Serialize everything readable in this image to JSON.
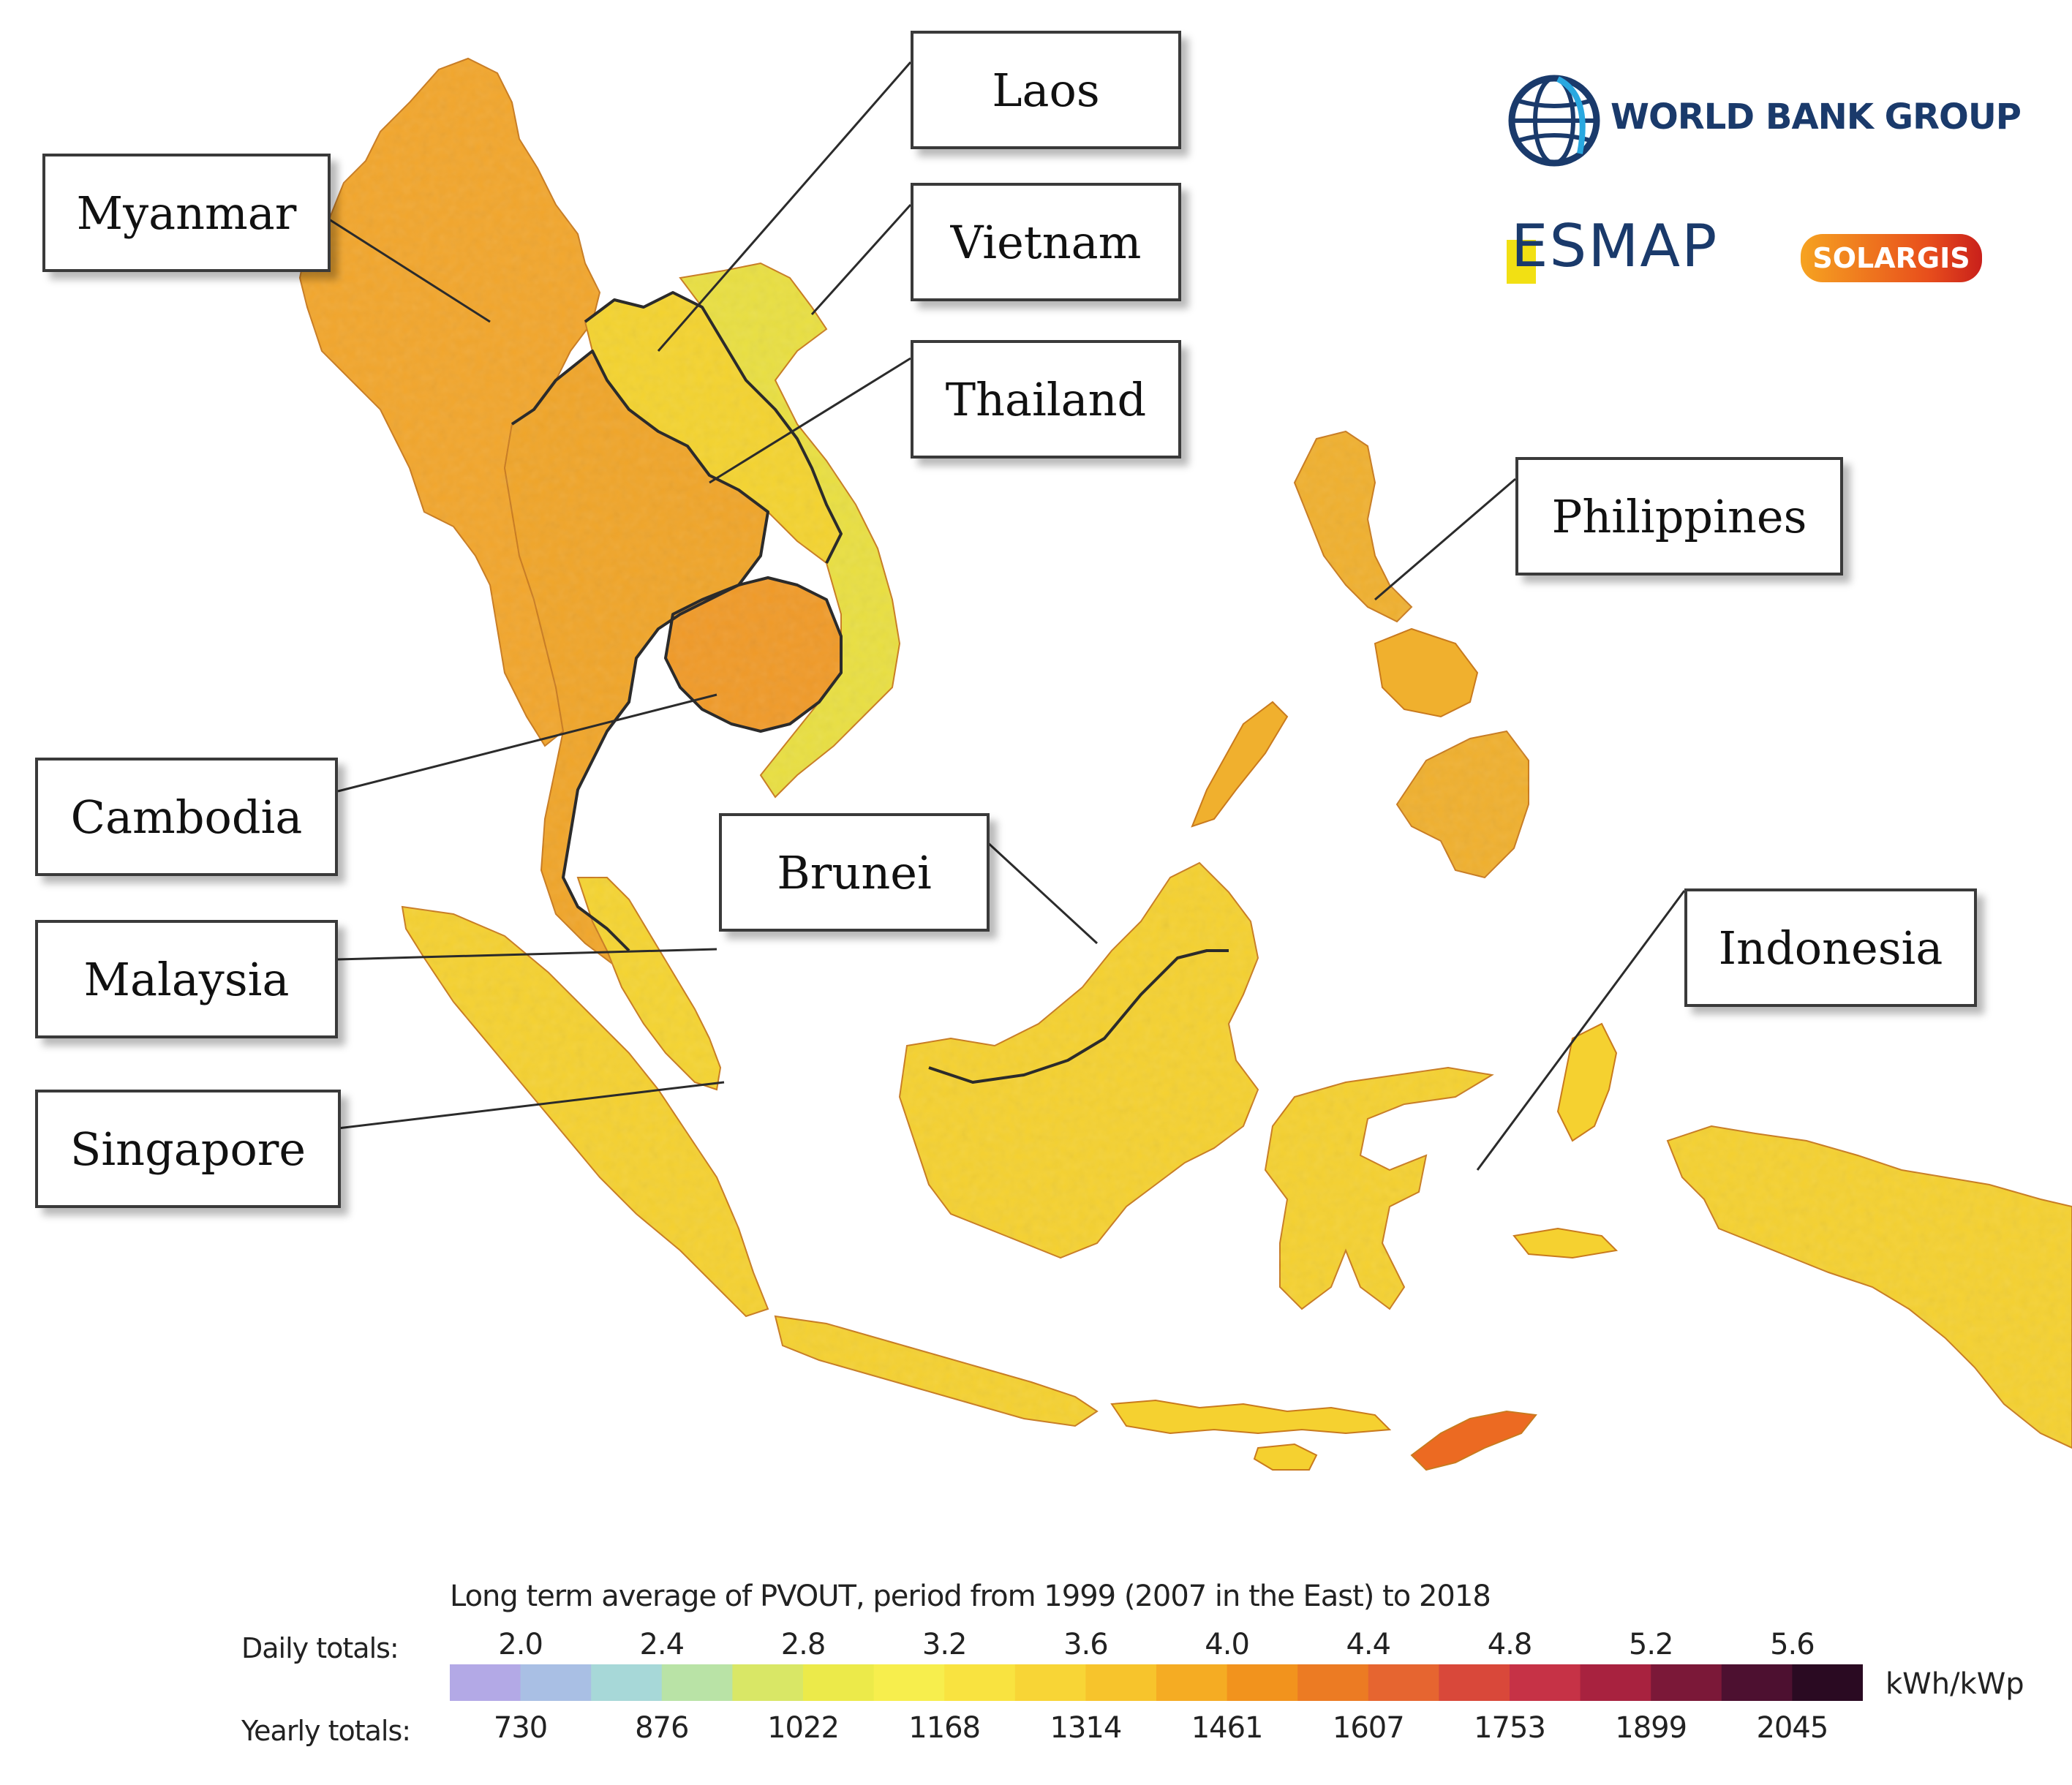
{
  "map": {
    "type": "choropleth",
    "region": "Southeast Asia",
    "countries": [
      {
        "name": "Myanmar",
        "fill": "#f2a62c"
      },
      {
        "name": "Laos",
        "fill": "#f4d32f"
      },
      {
        "name": "Vietnam",
        "fill": "#e9df41"
      },
      {
        "name": "Thailand",
        "fill": "#f0a529"
      },
      {
        "name": "Cambodia",
        "fill": "#f09a28"
      },
      {
        "name": "Malaysia",
        "fill": "#f5d431"
      },
      {
        "name": "Singapore",
        "fill": "#f5d431"
      },
      {
        "name": "Brunei",
        "fill": "#f5cf30"
      },
      {
        "name": "Philippines",
        "fill": "#f0b02e"
      },
      {
        "name": "Indonesia",
        "fill": "#f5d130"
      }
    ]
  },
  "labels": {
    "myanmar": "Myanmar",
    "laos": "Laos",
    "vietnam": "Vietnam",
    "thailand": "Thailand",
    "philippines": "Philippines",
    "cambodia": "Cambodia",
    "brunei": "Brunei",
    "malaysia": "Malaysia",
    "singapore": "Singapore",
    "indonesia": "Indonesia"
  },
  "logos": {
    "world_bank": "WORLD BANK GROUP",
    "esmap": "ESMAP",
    "solargis": "SOLARGIS"
  },
  "legend": {
    "title": "Long term average of PVOUT, period from 1999 (2007 in the East) to 2018",
    "daily_label": "Daily totals:",
    "yearly_label": "Yearly totals:",
    "unit": "kWh/kWp",
    "daily_ticks": [
      "2.0",
      "2.4",
      "2.8",
      "3.2",
      "3.6",
      "4.0",
      "4.4",
      "4.8",
      "5.2",
      "5.6"
    ],
    "yearly_ticks": [
      "730",
      "876",
      "1022",
      "1168",
      "1314",
      "1461",
      "1607",
      "1753",
      "1899",
      "2045"
    ],
    "colors": [
      "#b3a9e6",
      "#a9bfe4",
      "#a7d8d8",
      "#b9e3a6",
      "#d9e766",
      "#ecea4a",
      "#f7ee4d",
      "#f9e340",
      "#f8d536",
      "#f7c42c",
      "#f5ac23",
      "#f2931d",
      "#ec7b23",
      "#e66530",
      "#d9483a",
      "#c63246",
      "#a8223f",
      "#7b1838",
      "#4d1030",
      "#2a0a22"
    ]
  }
}
